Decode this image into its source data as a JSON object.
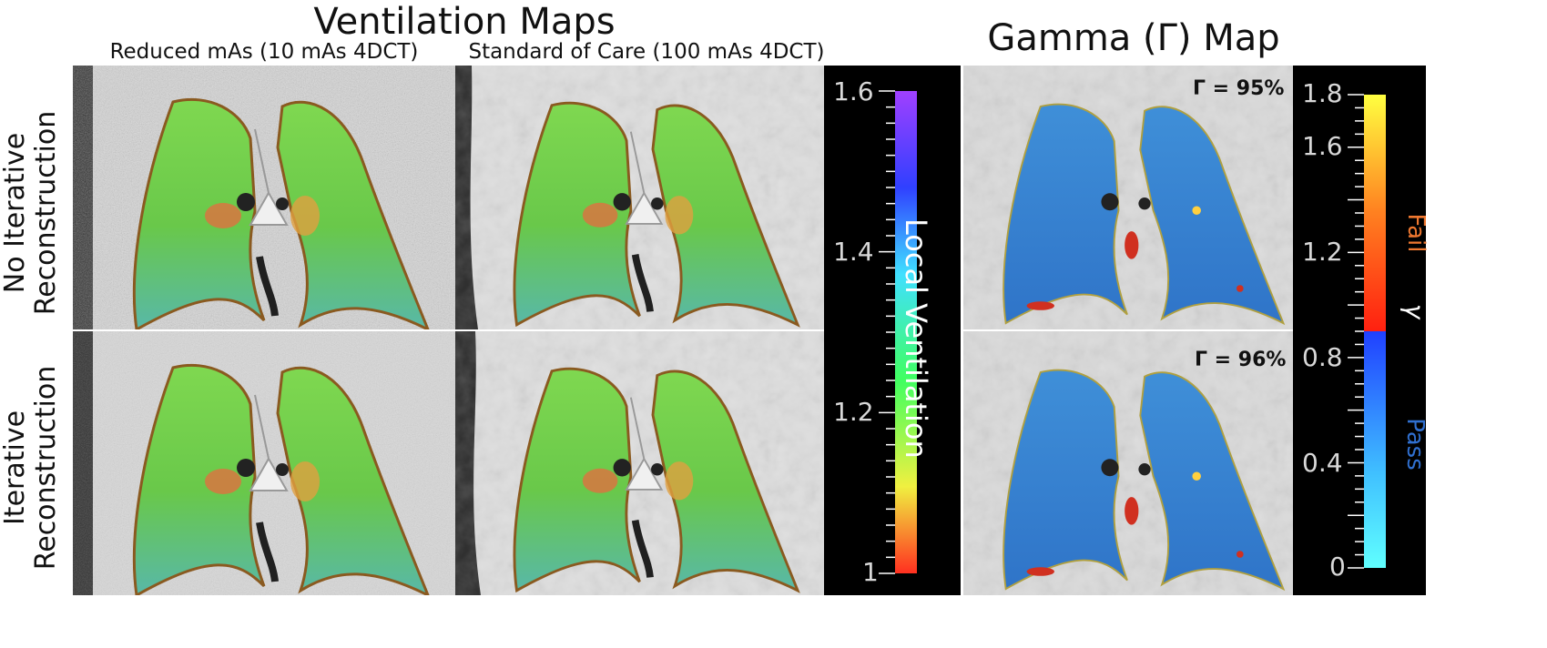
{
  "headings": {
    "ventilation_title": "Ventilation Maps",
    "gamma_title": "Gamma (Γ) Map",
    "col_reduced": "Reduced mAs (10 mAs 4DCT)",
    "col_standard": "Standard of Care (100 mAs 4DCT)"
  },
  "rows": {
    "no_iterative_line1": "No Iterative",
    "no_iterative_line2": "Reconstruction",
    "iterative_line1": "Iterative",
    "iterative_line2": "Reconstruction"
  },
  "ventilation_colorbar": {
    "label": "Local Ventilation",
    "ticks": [
      "1.6",
      "1.4",
      "1.2",
      "1"
    ],
    "colors": [
      "#a040ff",
      "#3040ff",
      "#40e0ff",
      "#40ff60",
      "#f0f040",
      "#ff3020"
    ]
  },
  "gamma_colorbar": {
    "symbol": "γ",
    "fail_label": "Fail",
    "pass_label": "Pass",
    "ticks": [
      "1.8",
      "1.6",
      "1.2",
      "0.8",
      "0.4",
      "0"
    ],
    "colors": [
      "#ffff40",
      "#ff8020",
      "#ff2010",
      "#2040ff",
      "#40c0ff",
      "#60ffff"
    ],
    "fail_color": "#f07830",
    "pass_color": "#3070d0"
  },
  "gamma_values": {
    "row1": "Γ = 95%",
    "row2": "Γ = 96%"
  },
  "images": [
    {
      "name": "vent-reduced-noir",
      "kind": "ventilation",
      "noise": "high"
    },
    {
      "name": "vent-standard-noir",
      "kind": "ventilation",
      "noise": "low"
    },
    {
      "name": "gamma-noir",
      "kind": "gamma"
    },
    {
      "name": "vent-reduced-ir",
      "kind": "ventilation",
      "noise": "high"
    },
    {
      "name": "vent-standard-ir",
      "kind": "ventilation",
      "noise": "low"
    },
    {
      "name": "gamma-ir",
      "kind": "gamma"
    }
  ]
}
